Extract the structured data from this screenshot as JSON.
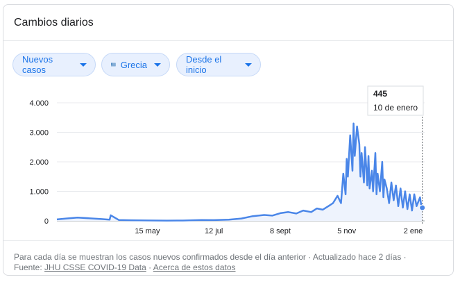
{
  "card": {
    "title": "Cambios diarios"
  },
  "controls": {
    "metric_label": "Nuevos casos",
    "country_label": "Grecia",
    "range_label": "Desde el inicio"
  },
  "tooltip": {
    "value": "445",
    "date": "10 de enero"
  },
  "footer": {
    "note": "Para cada día se muestran los casos nuevos confirmados desde el día anterior · Actualizado hace 2 días ·",
    "source_prefix": "Fuente:",
    "source_link": "JHU CSSE COVID-19 Data",
    "separator": "·",
    "about_link": "Acerca de estos datos"
  },
  "colors": {
    "line": "#4a86e8",
    "accent": "#1a73e8",
    "flag_blue": "#0d5eaf"
  },
  "chart_data": {
    "type": "line",
    "title": "",
    "xlabel": "",
    "ylabel": "",
    "ylim": [
      0,
      4000
    ],
    "yticks": [
      0,
      1000,
      2000,
      3000,
      4000
    ],
    "ytick_labels": [
      "0",
      "1.000",
      "2.000",
      "3.000",
      "4.000"
    ],
    "xticks": [
      "15 may",
      "12 jul",
      "8 sept",
      "5 nov",
      "2 ene"
    ],
    "grid": true,
    "series": [
      {
        "name": "",
        "x": [
          "2020-02-26",
          "2020-03-05",
          "2020-03-15",
          "2020-03-25",
          "2020-04-05",
          "2020-04-12",
          "2020-04-13",
          "2020-04-20",
          "2020-05-01",
          "2020-05-15",
          "2020-06-01",
          "2020-06-15",
          "2020-07-01",
          "2020-07-12",
          "2020-07-25",
          "2020-08-05",
          "2020-08-15",
          "2020-08-25",
          "2020-09-01",
          "2020-09-08",
          "2020-09-15",
          "2020-09-22",
          "2020-09-28",
          "2020-10-05",
          "2020-10-10",
          "2020-10-15",
          "2020-10-20",
          "2020-10-24",
          "2020-10-28",
          "2020-10-31",
          "2020-11-02",
          "2020-11-04",
          "2020-11-05",
          "2020-11-06",
          "2020-11-08",
          "2020-11-10",
          "2020-11-11",
          "2020-11-12",
          "2020-11-14",
          "2020-11-16",
          "2020-11-17",
          "2020-11-18",
          "2020-11-20",
          "2020-11-21",
          "2020-11-23",
          "2020-11-24",
          "2020-11-25",
          "2020-11-27",
          "2020-11-28",
          "2020-11-30",
          "2020-12-01",
          "2020-12-02",
          "2020-12-04",
          "2020-12-06",
          "2020-12-07",
          "2020-12-08",
          "2020-12-10",
          "2020-12-12",
          "2020-12-14",
          "2020-12-16",
          "2020-12-18",
          "2020-12-20",
          "2020-12-22",
          "2020-12-24",
          "2020-12-26",
          "2020-12-28",
          "2020-12-30",
          "2021-01-01",
          "2021-01-03",
          "2021-01-05",
          "2021-01-06",
          "2021-01-08",
          "2021-01-09",
          "2021-01-10"
        ],
        "y": [
          50,
          80,
          110,
          90,
          60,
          40,
          190,
          30,
          20,
          15,
          10,
          12,
          30,
          25,
          40,
          80,
          160,
          200,
          180,
          260,
          300,
          250,
          350,
          300,
          420,
          380,
          500,
          600,
          850,
          600,
          1600,
          900,
          2100,
          1500,
          2900,
          1700,
          3300,
          2200,
          3200,
          2600,
          1500,
          2300,
          1300,
          2500,
          1200,
          2200,
          1100,
          1700,
          1000,
          2300,
          900,
          1600,
          1000,
          2000,
          800,
          1400,
          1100,
          600,
          1300,
          700,
          1200,
          500,
          1100,
          450,
          1000,
          400,
          900,
          350,
          900,
          500,
          600,
          800,
          550,
          445
        ]
      }
    ]
  }
}
